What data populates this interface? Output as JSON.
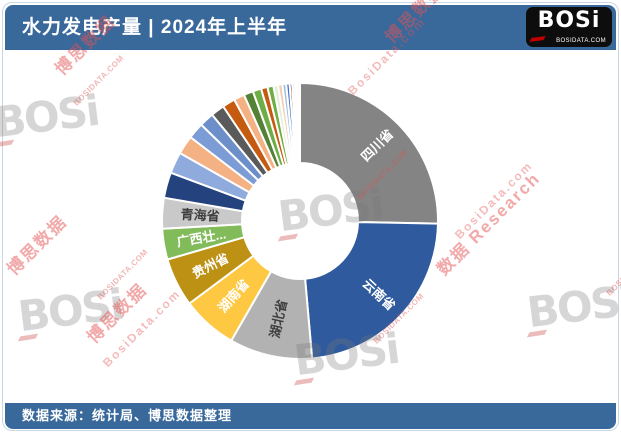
{
  "page": {
    "header": {
      "title": "水力发电产量 | 2024年上半年",
      "bg_color": "#39689B"
    },
    "logo": {
      "text": "BOSi",
      "site": "BOSIDATA.COM"
    },
    "footer": {
      "text": "数据来源：统计局、博思数据整理"
    }
  },
  "watermark": {
    "brand": "BOSi",
    "site": "BOSIDATA.COM",
    "cn": "博思数据",
    "en": "BosiData.com",
    "research": "数据 Research"
  },
  "chart_data": {
    "type": "pie",
    "subtype": "donut",
    "title": "水力发电产量 | 2024年上半年",
    "value_basis": "percent_of_total_estimated_from_arc_angles",
    "start_angle_deg": 0,
    "clockwise": true,
    "gap_color": "#FFFFFF",
    "slices": [
      {
        "label": "四川省",
        "value": 25.3,
        "color": "#848484",
        "label_color": "#FFFFFF"
      },
      {
        "label": "云南省",
        "value": 23.3,
        "color": "#2F5B9E",
        "label_color": "#FFFFFF"
      },
      {
        "label": "湖北省",
        "value": 9.7,
        "color": "#B2B2B2",
        "label_color": "#404040"
      },
      {
        "label": "湖南省",
        "value": 6.5,
        "color": "#FEC843",
        "label_color": "#FFFFFF"
      },
      {
        "label": "贵州省",
        "value": 5.7,
        "color": "#BD9114",
        "label_color": "#FFFFFF"
      },
      {
        "label": "广西壮...",
        "value": 3.6,
        "color": "#82BB59",
        "label_color": "#FFFFFF"
      },
      {
        "label": "青海省",
        "value": 3.6,
        "color": "#C9C9C9",
        "label_color": "#404040"
      },
      {
        "label": "",
        "value": 3.0,
        "color": "#24427E"
      },
      {
        "label": "",
        "value": 2.5,
        "color": "#8FAADC"
      },
      {
        "label": "",
        "value": 2.2,
        "color": "#F4B183"
      },
      {
        "label": "",
        "value": 1.9,
        "color": "#7C9CD6"
      },
      {
        "label": "",
        "value": 1.7,
        "color": "#6C8EC9"
      },
      {
        "label": "",
        "value": 1.6,
        "color": "#5A5A5A"
      },
      {
        "label": "",
        "value": 1.5,
        "color": "#C55A11"
      },
      {
        "label": "",
        "value": 1.25,
        "color": "#F4B183"
      },
      {
        "label": "",
        "value": 1.1,
        "color": "#538135"
      },
      {
        "label": "",
        "value": 1.0,
        "color": "#6EAD46"
      },
      {
        "label": "",
        "value": 0.75,
        "color": "#C55A11"
      },
      {
        "label": "",
        "value": 0.7,
        "color": "#70AD47"
      },
      {
        "label": "",
        "value": 0.55,
        "color": "#E2EFDA"
      },
      {
        "label": "",
        "value": 0.5,
        "color": "#F8CBAD"
      },
      {
        "label": "",
        "value": 0.45,
        "color": "#9DC3E6"
      },
      {
        "label": "",
        "value": 0.4,
        "color": "#4472C4"
      },
      {
        "label": "",
        "value": 0.3,
        "color": "#843C0C"
      },
      {
        "label": "",
        "value": 0.25,
        "color": "#2E75B6"
      },
      {
        "label": "",
        "value": 0.2,
        "color": "#BDD7EE"
      },
      {
        "label": "",
        "value": 0.2,
        "color": "#DEEBF7"
      },
      {
        "label": "",
        "value": 0.25,
        "color": "#D6DCE5"
      }
    ]
  }
}
